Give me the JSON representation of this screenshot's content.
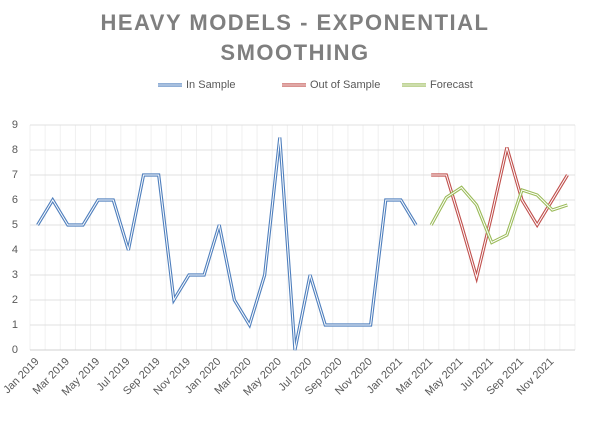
{
  "chart_data": {
    "type": "line",
    "title": "HEAVY MODELS - EXPONENTIAL SMOOTHING",
    "categories": [
      "Jan 2019",
      null,
      "Mar 2019",
      null,
      "May 2019",
      null,
      "Jul 2019",
      null,
      "Sep 2019",
      null,
      "Nov 2019",
      null,
      "Jan 2020",
      null,
      "Mar 2020",
      null,
      "May 2020",
      null,
      "Jul 2020",
      null,
      "Sep 2020",
      null,
      "Nov 2020",
      null,
      "Jan 2021",
      null,
      "Mar 2021",
      null,
      "May 2021",
      null,
      "Jul 2021",
      null,
      "Sep 2021",
      null,
      "Nov 2021",
      null
    ],
    "series": [
      {
        "name": "In Sample",
        "color": "#4f7fbd",
        "values": [
          5,
          6,
          5,
          5,
          6,
          6,
          4,
          7,
          7,
          2,
          3,
          3,
          5,
          2,
          1,
          3,
          8.5,
          0,
          3,
          1,
          1,
          1,
          1,
          6,
          6,
          5,
          null,
          null,
          null,
          null,
          null,
          null,
          null,
          null,
          null,
          null
        ]
      },
      {
        "name": "Out of Sample",
        "color": "#c0504d",
        "values": [
          null,
          null,
          null,
          null,
          null,
          null,
          null,
          null,
          null,
          null,
          null,
          null,
          null,
          null,
          null,
          null,
          null,
          null,
          null,
          null,
          null,
          null,
          null,
          null,
          null,
          null,
          7,
          7,
          5,
          2.9,
          5.4,
          8.1,
          6,
          5,
          6,
          7
        ]
      },
      {
        "name": "Forecast",
        "color": "#9bbb59",
        "values": [
          null,
          null,
          null,
          null,
          null,
          null,
          null,
          null,
          null,
          null,
          null,
          null,
          null,
          null,
          null,
          null,
          null,
          null,
          null,
          null,
          null,
          null,
          null,
          null,
          null,
          null,
          5,
          6.1,
          6.5,
          5.8,
          4.3,
          4.6,
          6.4,
          6.2,
          5.6,
          5.8
        ]
      }
    ],
    "ylim": [
      0,
      9
    ],
    "yticks": [
      0,
      1,
      2,
      3,
      4,
      5,
      6,
      7,
      8,
      9
    ],
    "grid": true,
    "legend": "top"
  }
}
